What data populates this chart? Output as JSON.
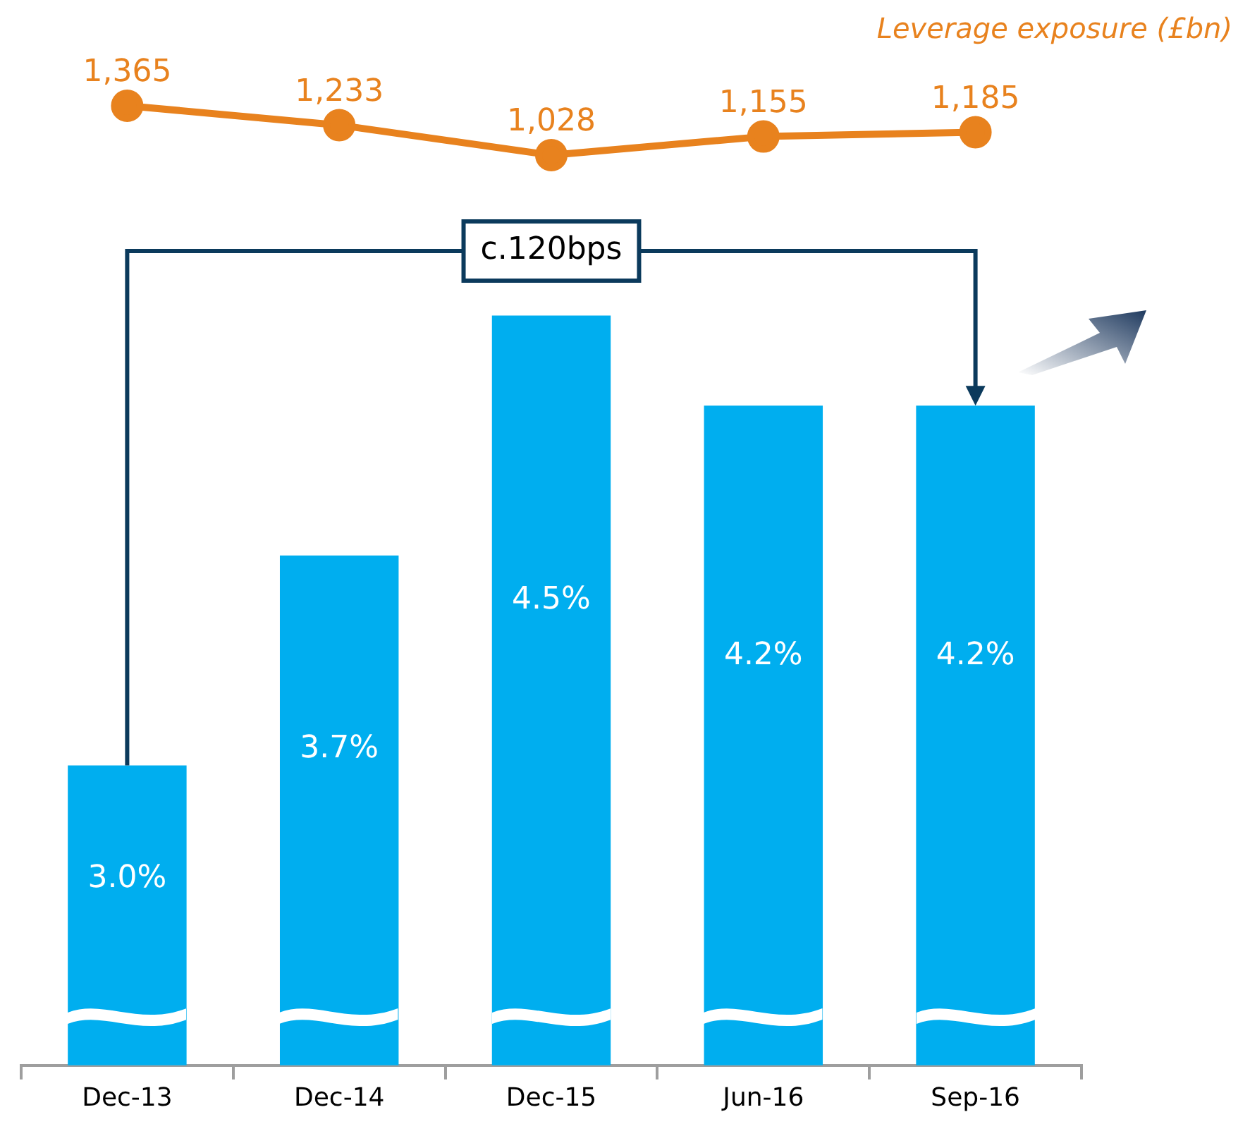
{
  "chart_data": [
    {
      "type": "line",
      "categories": [
        null,
        null,
        null,
        null,
        null
      ],
      "tick_labels": false,
      "marker": "circle",
      "series": [
        {
          "name": "Leverage exposure (£bn)",
          "color": "#e8821e",
          "values": [
            1365,
            1233,
            1028,
            1155,
            1185
          ],
          "value_labels": [
            "1,365",
            "1,233",
            "1,028",
            "1,155",
            "1,185"
          ]
        }
      ]
    },
    {
      "type": "bar",
      "categories": [
        "Dec-13",
        "Dec-14",
        "Dec-15",
        "Jun-16",
        "Sep-16"
      ],
      "tick_labels": "x",
      "annotations": [
        "c.120bps"
      ],
      "series": [
        {
          "color": "#00aeef",
          "values": [
            3.0,
            3.7,
            4.5,
            4.2,
            4.2
          ],
          "value_labels": [
            "3.0%",
            "3.7%",
            "4.5%",
            "4.2%",
            "4.2%"
          ]
        }
      ]
    }
  ]
}
